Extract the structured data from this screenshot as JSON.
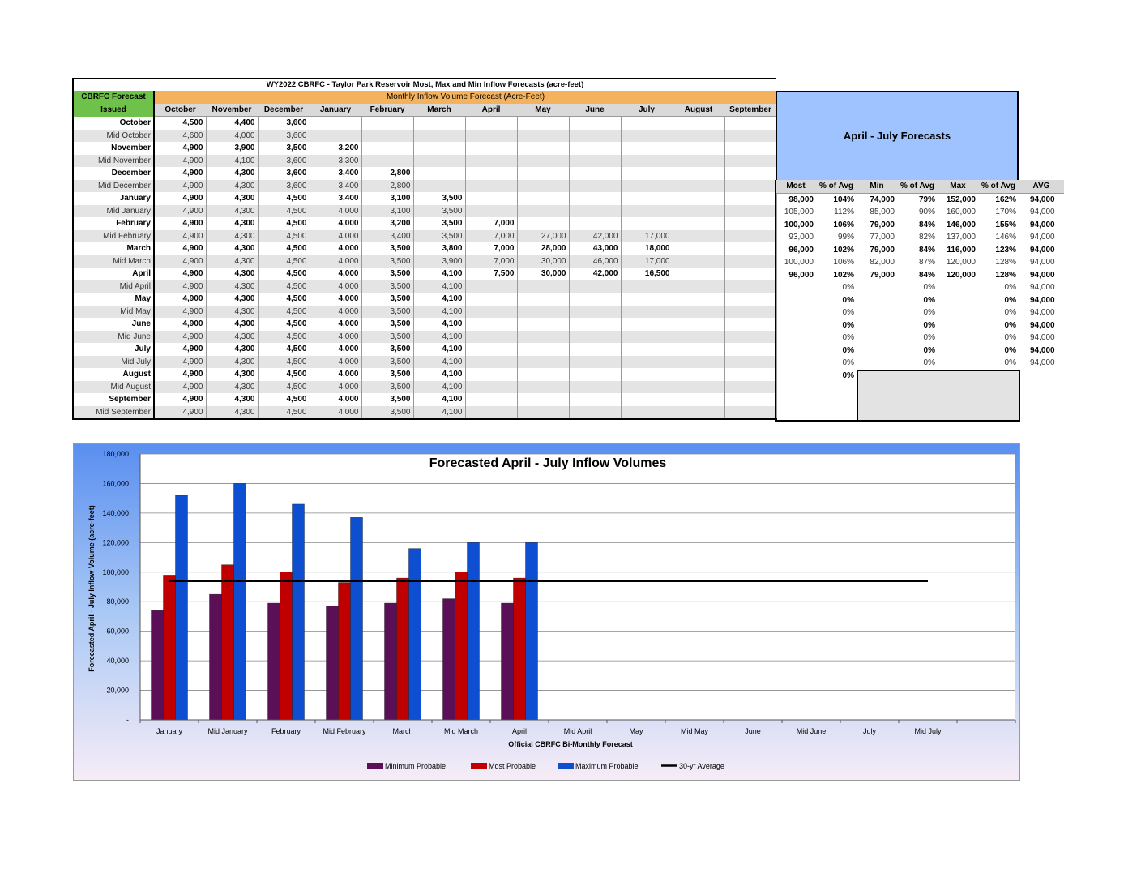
{
  "table": {
    "title": "WY2022 CBRFC - Taylor Park Reservoir Most, Max and Min Inflow Forecasts (acre-feet)",
    "issued_header_line1": "CBRFC Forecast",
    "issued_header_line2": "Issued",
    "band_label": "Monthly Inflow Volume Forecast (Acre-Feet)",
    "months": [
      "October",
      "November",
      "December",
      "January",
      "February",
      "March",
      "April",
      "May",
      "June",
      "July",
      "August",
      "September"
    ],
    "rows": [
      {
        "label": "October",
        "values": [
          "4,500",
          "4,400",
          "3,600",
          "",
          "",
          "",
          "",
          "",
          "",
          "",
          "",
          ""
        ]
      },
      {
        "label": "Mid October",
        "values": [
          "4,600",
          "4,000",
          "3,600",
          "",
          "",
          "",
          "",
          "",
          "",
          "",
          "",
          ""
        ]
      },
      {
        "label": "November",
        "values": [
          "4,900",
          "3,900",
          "3,500",
          "3,200",
          "",
          "",
          "",
          "",
          "",
          "",
          "",
          ""
        ]
      },
      {
        "label": "Mid November",
        "values": [
          "4,900",
          "4,100",
          "3,600",
          "3,300",
          "",
          "",
          "",
          "",
          "",
          "",
          "",
          ""
        ]
      },
      {
        "label": "December",
        "values": [
          "4,900",
          "4,300",
          "3,600",
          "3,400",
          "2,800",
          "",
          "",
          "",
          "",
          "",
          "",
          ""
        ]
      },
      {
        "label": "Mid December",
        "values": [
          "4,900",
          "4,300",
          "3,600",
          "3,400",
          "2,800",
          "",
          "",
          "",
          "",
          "",
          "",
          ""
        ]
      },
      {
        "label": "January",
        "values": [
          "4,900",
          "4,300",
          "4,500",
          "3,400",
          "3,100",
          "3,500",
          "",
          "",
          "",
          "",
          "",
          ""
        ]
      },
      {
        "label": "Mid January",
        "values": [
          "4,900",
          "4,300",
          "4,500",
          "4,000",
          "3,100",
          "3,500",
          "",
          "",
          "",
          "",
          "",
          ""
        ]
      },
      {
        "label": "February",
        "values": [
          "4,900",
          "4,300",
          "4,500",
          "4,000",
          "3,200",
          "3,500",
          "7,000",
          "",
          "",
          "",
          "",
          ""
        ]
      },
      {
        "label": "Mid February",
        "values": [
          "4,900",
          "4,300",
          "4,500",
          "4,000",
          "3,400",
          "3,500",
          "7,000",
          "27,000",
          "42,000",
          "17,000",
          "",
          ""
        ]
      },
      {
        "label": "March",
        "values": [
          "4,900",
          "4,300",
          "4,500",
          "4,000",
          "3,500",
          "3,800",
          "7,000",
          "28,000",
          "43,000",
          "18,000",
          "",
          ""
        ]
      },
      {
        "label": "Mid March",
        "values": [
          "4,900",
          "4,300",
          "4,500",
          "4,000",
          "3,500",
          "3,900",
          "7,000",
          "30,000",
          "46,000",
          "17,000",
          "",
          ""
        ]
      },
      {
        "label": "April",
        "values": [
          "4,900",
          "4,300",
          "4,500",
          "4,000",
          "3,500",
          "4,100",
          "7,500",
          "30,000",
          "42,000",
          "16,500",
          "",
          ""
        ]
      },
      {
        "label": "Mid April",
        "values": [
          "4,900",
          "4,300",
          "4,500",
          "4,000",
          "3,500",
          "4,100",
          "",
          "",
          "",
          "",
          "",
          ""
        ]
      },
      {
        "label": "May",
        "values": [
          "4,900",
          "4,300",
          "4,500",
          "4,000",
          "3,500",
          "4,100",
          "",
          "",
          "",
          "",
          "",
          ""
        ]
      },
      {
        "label": "Mid May",
        "values": [
          "4,900",
          "4,300",
          "4,500",
          "4,000",
          "3,500",
          "4,100",
          "",
          "",
          "",
          "",
          "",
          ""
        ]
      },
      {
        "label": "June",
        "values": [
          "4,900",
          "4,300",
          "4,500",
          "4,000",
          "3,500",
          "4,100",
          "",
          "",
          "",
          "",
          "",
          ""
        ]
      },
      {
        "label": "Mid June",
        "values": [
          "4,900",
          "4,300",
          "4,500",
          "4,000",
          "3,500",
          "4,100",
          "",
          "",
          "",
          "",
          "",
          ""
        ]
      },
      {
        "label": "July",
        "values": [
          "4,900",
          "4,300",
          "4,500",
          "4,000",
          "3,500",
          "4,100",
          "",
          "",
          "",
          "",
          "",
          ""
        ]
      },
      {
        "label": "Mid July",
        "values": [
          "4,900",
          "4,300",
          "4,500",
          "4,000",
          "3,500",
          "4,100",
          "",
          "",
          "",
          "",
          "",
          ""
        ]
      },
      {
        "label": "August",
        "values": [
          "4,900",
          "4,300",
          "4,500",
          "4,000",
          "3,500",
          "4,100",
          "",
          "",
          "",
          "",
          "",
          ""
        ]
      },
      {
        "label": "Mid August",
        "values": [
          "4,900",
          "4,300",
          "4,500",
          "4,000",
          "3,500",
          "4,100",
          "",
          "",
          "",
          "",
          "",
          ""
        ]
      },
      {
        "label": "September",
        "values": [
          "4,900",
          "4,300",
          "4,500",
          "4,000",
          "3,500",
          "4,100",
          "",
          "",
          "",
          "",
          "",
          ""
        ]
      },
      {
        "label": "Mid September",
        "values": [
          "4,900",
          "4,300",
          "4,500",
          "4,000",
          "3,500",
          "4,100",
          "",
          "",
          "",
          "",
          "",
          ""
        ]
      }
    ]
  },
  "april_july": {
    "title": "April - July Forecasts",
    "headers": [
      "Most",
      "% of Avg",
      "Min",
      "% of Avg",
      "Max",
      "% of Avg",
      "AVG"
    ],
    "rows": [
      [
        "98,000",
        "104%",
        "74,000",
        "79%",
        "152,000",
        "162%",
        "94,000"
      ],
      [
        "105,000",
        "112%",
        "85,000",
        "90%",
        "160,000",
        "170%",
        "94,000"
      ],
      [
        "100,000",
        "106%",
        "79,000",
        "84%",
        "146,000",
        "155%",
        "94,000"
      ],
      [
        "93,000",
        "99%",
        "77,000",
        "82%",
        "137,000",
        "146%",
        "94,000"
      ],
      [
        "96,000",
        "102%",
        "79,000",
        "84%",
        "116,000",
        "123%",
        "94,000"
      ],
      [
        "100,000",
        "106%",
        "82,000",
        "87%",
        "120,000",
        "128%",
        "94,000"
      ],
      [
        "96,000",
        "102%",
        "79,000",
        "84%",
        "120,000",
        "128%",
        "94,000"
      ],
      [
        "",
        "0%",
        "",
        "0%",
        "",
        "0%",
        "94,000"
      ],
      [
        "",
        "0%",
        "",
        "0%",
        "",
        "0%",
        "94,000"
      ],
      [
        "",
        "0%",
        "",
        "0%",
        "",
        "0%",
        "94,000"
      ],
      [
        "",
        "0%",
        "",
        "0%",
        "",
        "0%",
        "94,000"
      ],
      [
        "",
        "0%",
        "",
        "0%",
        "",
        "0%",
        "94,000"
      ],
      [
        "",
        "0%",
        "",
        "0%",
        "",
        "0%",
        "94,000"
      ],
      [
        "",
        "0%",
        "",
        "0%",
        "",
        "0%",
        "94,000"
      ],
      [
        "",
        "0%",
        "",
        "",
        "",
        "",
        ""
      ]
    ]
  },
  "chart_data": {
    "type": "bar",
    "title": "Forecasted April - July Inflow Volumes",
    "xlabel": "Official CBRFC Bi-Monthly Forecast",
    "ylabel": "Forecasted April - July Inflow Volume (acre-feet)",
    "ylim": [
      0,
      180000
    ],
    "yticks": [
      "-",
      "20,000",
      "40,000",
      "60,000",
      "80,000",
      "100,000",
      "120,000",
      "140,000",
      "160,000",
      "180,000"
    ],
    "categories": [
      "January",
      "Mid January",
      "February",
      "Mid February",
      "March",
      "Mid March",
      "April",
      "Mid April",
      "May",
      "Mid May",
      "June",
      "Mid June",
      "July",
      "Mid July"
    ],
    "series": [
      {
        "name": "Minimum Probable",
        "color": "#5b0f57",
        "values": [
          74000,
          85000,
          79000,
          77000,
          79000,
          82000,
          79000,
          null,
          null,
          null,
          null,
          null,
          null,
          null
        ]
      },
      {
        "name": "Most Probable",
        "color": "#c00000",
        "values": [
          98000,
          105000,
          100000,
          93000,
          96000,
          100000,
          96000,
          null,
          null,
          null,
          null,
          null,
          null,
          null
        ]
      },
      {
        "name": "Maximum Probable",
        "color": "#0d4fd0",
        "values": [
          152000,
          160000,
          146000,
          137000,
          116000,
          120000,
          120000,
          null,
          null,
          null,
          null,
          null,
          null,
          null
        ]
      }
    ],
    "average": {
      "name": "30-yr Average",
      "color": "#000000",
      "value": 94000
    },
    "grid": true,
    "legend_position": "bottom"
  }
}
